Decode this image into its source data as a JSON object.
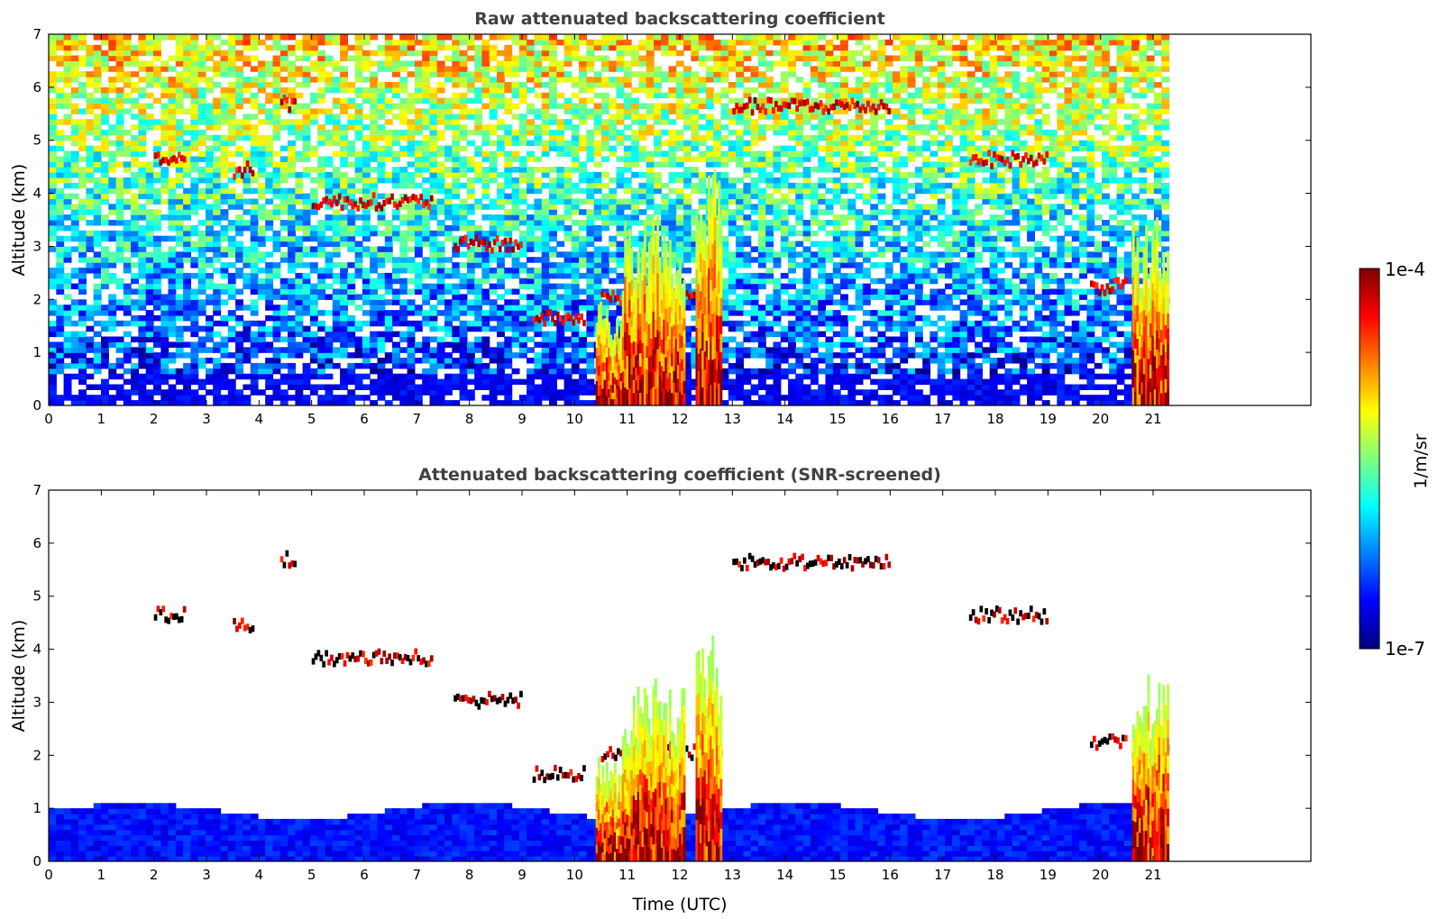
{
  "colors": {
    "jet": [
      "#00007f",
      "#0000ff",
      "#007fff",
      "#00ffff",
      "#7fff7f",
      "#ffff00",
      "#ff7f00",
      "#ff0000",
      "#7f0000"
    ],
    "dark_feature": "#000000",
    "background": "#ffffff"
  },
  "colorbar": {
    "label": "1/m/sr",
    "max_label": "1e-4",
    "min_label": "1e-7",
    "scale": "log",
    "range": [
      1e-07,
      0.0001
    ]
  },
  "chart_data": [
    {
      "type": "heatmap",
      "title": "Raw attenuated backscattering coefficient",
      "xlabel": "",
      "ylabel": "Altitude (km)",
      "xlim": [
        0,
        24
      ],
      "ylim": [
        0,
        7
      ],
      "xticks": [
        "0",
        "1",
        "2",
        "3",
        "4",
        "5",
        "6",
        "7",
        "8",
        "9",
        "10",
        "11",
        "12",
        "13",
        "14",
        "15",
        "16",
        "17",
        "18",
        "19",
        "20",
        "21"
      ],
      "yticks": [
        "0",
        "1",
        "2",
        "3",
        "4",
        "5",
        "6",
        "7"
      ],
      "data_end_time": 21.3,
      "boundary_layer_top_km": 0.6,
      "cloud_features": [
        {
          "x_start": 2.0,
          "x_end": 2.6,
          "altitude_km": 4.6
        },
        {
          "x_start": 3.5,
          "x_end": 3.9,
          "altitude_km": 4.4
        },
        {
          "x_start": 4.4,
          "x_end": 4.7,
          "altitude_km": 5.65
        },
        {
          "x_start": 5.0,
          "x_end": 7.3,
          "altitude_km": 3.8
        },
        {
          "x_start": 7.7,
          "x_end": 9.0,
          "altitude_km": 3.0
        },
        {
          "x_start": 9.2,
          "x_end": 10.2,
          "altitude_km": 1.6
        },
        {
          "x_start": 10.5,
          "x_end": 12.8,
          "altitude_km": 2.0
        },
        {
          "x_start": 13.0,
          "x_end": 16.0,
          "altitude_km": 5.6
        },
        {
          "x_start": 17.5,
          "x_end": 19.0,
          "altitude_km": 4.6
        },
        {
          "x_start": 19.8,
          "x_end": 20.5,
          "altitude_km": 2.2
        },
        {
          "x_start": 20.6,
          "x_end": 21.3,
          "altitude_km": 2.0
        }
      ]
    },
    {
      "type": "heatmap",
      "title": "Attenuated backscattering coefficient (SNR-screened)",
      "xlabel": "Time (UTC)",
      "ylabel": "Altitude (km)",
      "xlim": [
        0,
        24
      ],
      "ylim": [
        0,
        7
      ],
      "xticks": [
        "0",
        "1",
        "2",
        "3",
        "4",
        "5",
        "6",
        "7",
        "8",
        "9",
        "10",
        "11",
        "12",
        "13",
        "14",
        "15",
        "16",
        "17",
        "18",
        "19",
        "20",
        "21"
      ],
      "yticks": [
        "0",
        "1",
        "2",
        "3",
        "4",
        "5",
        "6",
        "7"
      ],
      "data_end_time": 21.3,
      "boundary_layer_top_km": 0.9,
      "cloud_features": [
        {
          "x_start": 2.0,
          "x_end": 2.6,
          "altitude_km": 4.6
        },
        {
          "x_start": 3.5,
          "x_end": 3.9,
          "altitude_km": 4.4
        },
        {
          "x_start": 4.4,
          "x_end": 4.7,
          "altitude_km": 5.65
        },
        {
          "x_start": 5.0,
          "x_end": 7.3,
          "altitude_km": 3.8
        },
        {
          "x_start": 7.7,
          "x_end": 9.0,
          "altitude_km": 3.0
        },
        {
          "x_start": 9.2,
          "x_end": 10.2,
          "altitude_km": 1.6
        },
        {
          "x_start": 10.5,
          "x_end": 12.8,
          "altitude_km": 2.0
        },
        {
          "x_start": 13.0,
          "x_end": 16.0,
          "altitude_km": 5.6
        },
        {
          "x_start": 17.5,
          "x_end": 19.0,
          "altitude_km": 4.6
        },
        {
          "x_start": 19.8,
          "x_end": 20.5,
          "altitude_km": 2.2
        },
        {
          "x_start": 20.6,
          "x_end": 21.3,
          "altitude_km": 2.0
        }
      ]
    }
  ]
}
